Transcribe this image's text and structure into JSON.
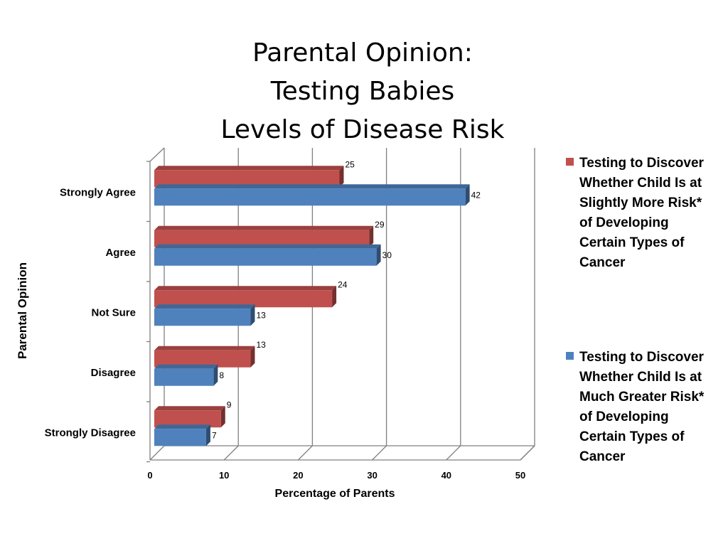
{
  "chart_data": {
    "type": "bar",
    "orientation": "horizontal",
    "title_lines": [
      "Parental Opinion:",
      "Testing Babies",
      "Levels of Disease Risk"
    ],
    "xlabel": "Percentage of Parents",
    "ylabel": "Parental Opinion",
    "categories": [
      "Strongly Agree",
      "Agree",
      "Not Sure",
      "Disagree",
      "Strongly Disagree"
    ],
    "xlim": [
      0,
      50
    ],
    "xticks": [
      "0",
      "10",
      "20",
      "30",
      "40",
      "50"
    ],
    "grid": true,
    "legend_position": "right",
    "series": [
      {
        "name": "Testing to Discover Whether Child Is at Slightly More Risk* of Developing Certain Types of Cancer",
        "legend_lines": [
          "Testing to Discover",
          "Whether Child Is at",
          "Slightly More Risk*",
          "of Developing",
          "Certain Types of",
          "Cancer"
        ],
        "color": "#c0504d",
        "values": [
          25,
          29,
          24,
          13,
          9
        ]
      },
      {
        "name": "Testing to Discover Whether Child Is at Much Greater Risk* of Developing Certain Types of Cancer",
        "legend_lines": [
          "Testing to Discover",
          "Whether Child Is at",
          "Much Greater Risk*",
          "of Developing",
          "Certain Types of",
          "Cancer"
        ],
        "color": "#4f81bd",
        "values": [
          42,
          30,
          13,
          8,
          7
        ]
      }
    ]
  }
}
